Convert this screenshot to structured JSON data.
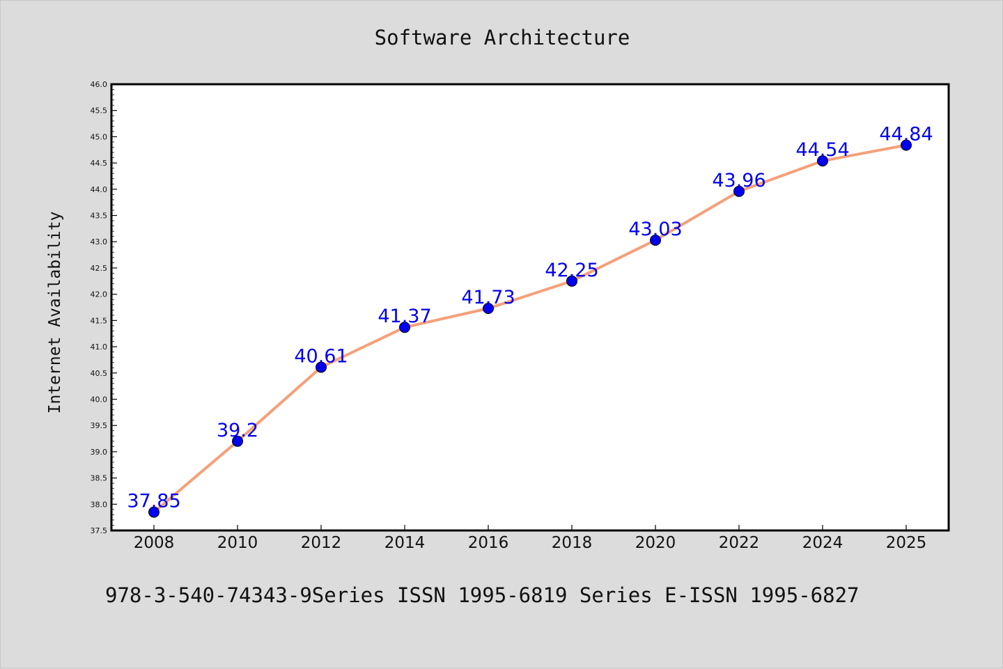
{
  "chart_data": {
    "type": "line",
    "title": "Software Architecture",
    "xlabel": "",
    "ylabel": "Internet Availability",
    "categories": [
      "2008",
      "2010",
      "2012",
      "2014",
      "2016",
      "2018",
      "2020",
      "2022",
      "2024",
      "2025"
    ],
    "series": [
      {
        "values": [
          37.85,
          39.2,
          40.61,
          41.37,
          41.73,
          42.25,
          43.03,
          43.96,
          44.54,
          44.84
        ],
        "labels": [
          "37.85",
          "39.2",
          "40.61",
          "41.37",
          "41.73",
          "42.25",
          "43.03",
          "43.96",
          "44.54",
          "44.84"
        ],
        "line_color": "#f4a07a",
        "marker_color": "#0000ee",
        "label_color": "#0000ee"
      }
    ],
    "ylim": [
      37.5,
      46.0
    ],
    "yticks": [
      "37.5",
      "38.0",
      "38.5",
      "39.0",
      "39.5",
      "40.0",
      "40.5",
      "41.0",
      "41.5",
      "42.0",
      "42.5",
      "43.0",
      "43.5",
      "44.0",
      "44.5",
      "45.0",
      "45.5",
      "46.0"
    ],
    "grid": false,
    "legend": "none"
  },
  "footer_text": "978-3-540-74343-9Series ISSN 1995-6819 Series E-ISSN 1995-6827",
  "colors": {
    "background": "#dcdcdc",
    "plot_background": "#ffffff",
    "axis": "#000000"
  }
}
